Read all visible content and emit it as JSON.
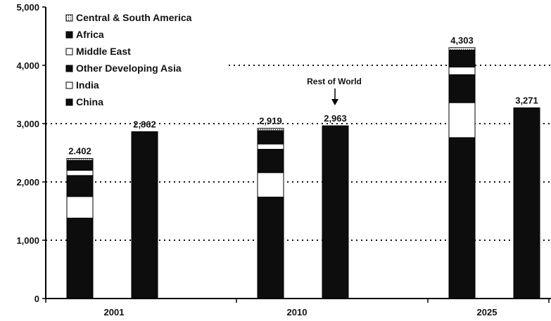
{
  "chart_data": {
    "type": "bar",
    "subtype": "grouped-stacked",
    "categories": [
      "2001",
      "2010",
      "2025"
    ],
    "ylim": [
      0,
      5000
    ],
    "yticks": [
      "0",
      "1,000",
      "2,000",
      "3,000",
      "4,000",
      "5,000"
    ],
    "ytick_values": [
      0,
      1000,
      2000,
      3000,
      4000,
      5000
    ],
    "grid": "dotted horizontal at 1,000 / 2,000 / 3,000 / 4,000",
    "legend_placement": "top-left",
    "stacked_series": [
      {
        "name": "China",
        "fill": "black",
        "values": [
          1380,
          1740,
          2760
        ]
      },
      {
        "name": "India",
        "fill": "white",
        "values": [
          370,
          420,
          600
        ]
      },
      {
        "name": "Other Developing Asia",
        "fill": "black",
        "values": [
          360,
          400,
          480
        ]
      },
      {
        "name": "Middle East",
        "fill": "white",
        "values": [
          90,
          90,
          130
        ]
      },
      {
        "name": "Africa",
        "fill": "black",
        "values": [
          170,
          230,
          290
        ]
      },
      {
        "name": "Central & South America",
        "fill": "dotted",
        "values": [
          32,
          39,
          43
        ]
      }
    ],
    "stacked_totals": [
      "2.402",
      "2,919",
      "4,303"
    ],
    "rest_of_world": {
      "name": "Rest of World",
      "values": [
        2862,
        2963,
        3271
      ],
      "labels": [
        "2,862",
        "2,963",
        "3,271"
      ]
    },
    "legend": [
      "Central & South America",
      "Africa",
      "Middle East",
      "Other Developing Asia",
      "India",
      "China"
    ],
    "annotation": "Rest of World",
    "colors": {
      "black": "#0d0d0d",
      "white": "#ffffff",
      "axis": "#000000"
    }
  }
}
